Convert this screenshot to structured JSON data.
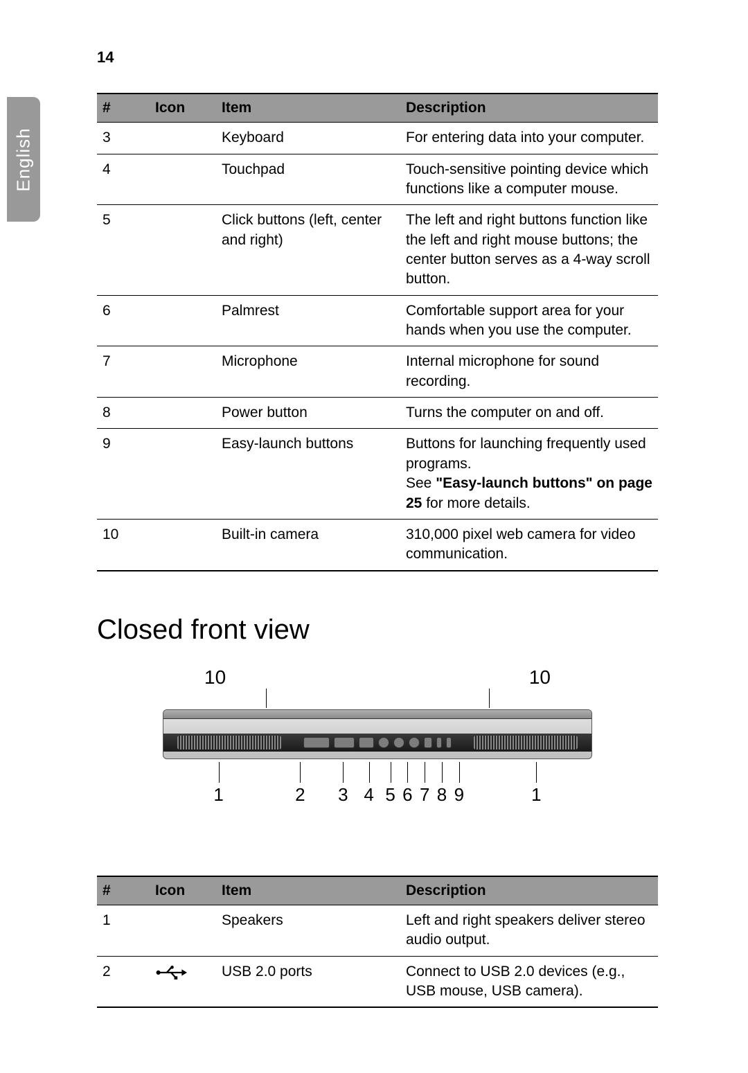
{
  "page_number": "14",
  "language_tab": "English",
  "table1": {
    "headers": {
      "num": "#",
      "icon": "Icon",
      "item": "Item",
      "desc": "Description"
    },
    "rows": [
      {
        "num": "3",
        "icon": "",
        "item": "Keyboard",
        "desc": "For entering data into your computer."
      },
      {
        "num": "4",
        "icon": "",
        "item": "Touchpad",
        "desc": "Touch-sensitive pointing device which functions like a computer mouse."
      },
      {
        "num": "5",
        "icon": "",
        "item": "Click buttons (left, center and right)",
        "desc": "The left and right buttons function like the left and right mouse buttons; the center button serves as a 4-way scroll button."
      },
      {
        "num": "6",
        "icon": "",
        "item": "Palmrest",
        "desc": "Comfortable support area for your hands when you use the computer."
      },
      {
        "num": "7",
        "icon": "",
        "item": "Microphone",
        "desc": "Internal microphone for sound recording."
      },
      {
        "num": "8",
        "icon": "",
        "item": "Power button",
        "desc": "Turns the computer on and off."
      },
      {
        "num": "9",
        "icon": "",
        "item": "Easy-launch buttons",
        "desc_pre": "Buttons for launching frequently used programs.\nSee ",
        "desc_bold": "\"Easy-launch buttons\" on page 25",
        "desc_post": " for more details."
      },
      {
        "num": "10",
        "icon": "",
        "item": "Built-in camera",
        "desc": "310,000 pixel web camera for video communication."
      }
    ]
  },
  "section_heading": "Closed front view",
  "figure": {
    "top_labels": [
      "10",
      "10"
    ],
    "bottom_labels": [
      "1",
      "2",
      "3",
      "4",
      "5",
      "6",
      "7",
      "8",
      "9",
      "1"
    ],
    "bottom_positions_pct": [
      13,
      32,
      42,
      48,
      53,
      57,
      61,
      65,
      69,
      87
    ],
    "top_tick_positions_pct": [
      24,
      76
    ]
  },
  "table2": {
    "headers": {
      "num": "#",
      "icon": "Icon",
      "item": "Item",
      "desc": "Description"
    },
    "rows": [
      {
        "num": "1",
        "icon_name": "",
        "item": "Speakers",
        "desc": "Left and right speakers deliver stereo audio output."
      },
      {
        "num": "2",
        "icon_name": "usb-icon",
        "item": "USB 2.0 ports",
        "desc": "Connect to USB 2.0 devices (e.g., USB mouse, USB camera)."
      }
    ]
  },
  "colors": {
    "header_bg": "#9a9a9a",
    "tab_bg": "#999999",
    "text": "#000000",
    "tab_text": "#ffffff"
  }
}
